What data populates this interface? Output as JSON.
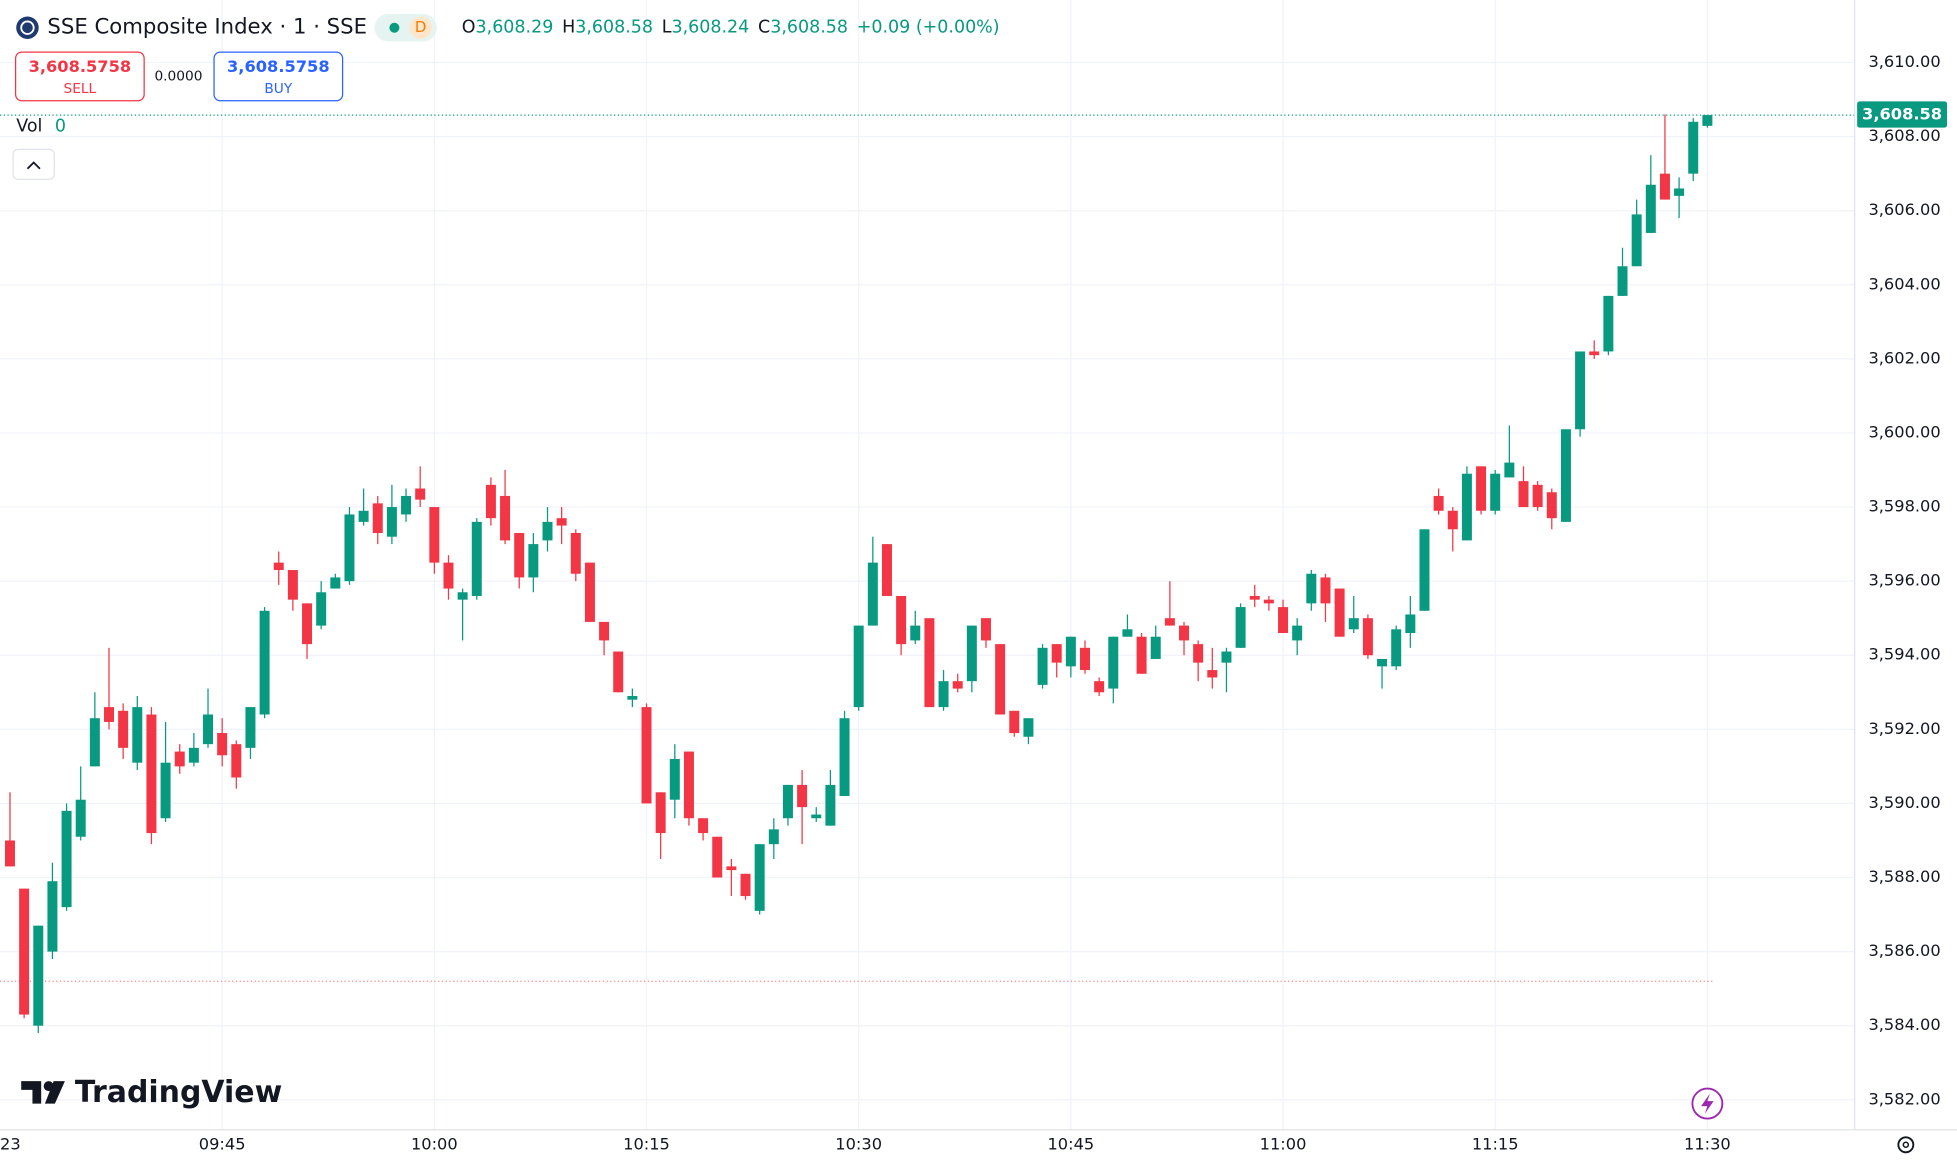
{
  "chart_data": {
    "type": "candlestick",
    "title": "SSE Composite Index · 1 · SSE",
    "interval_badge": "D",
    "ohlc_legend": [
      {
        "key": "O",
        "value": "3,608.29"
      },
      {
        "key": "H",
        "value": "3,608.58"
      },
      {
        "key": "L",
        "value": "3,608.24"
      },
      {
        "key": "C",
        "value": "3,608.58"
      }
    ],
    "change": "+0.09 (+0.00%)",
    "sell": {
      "price": "3,608.5758",
      "label": "SELL"
    },
    "spread": "0.0000",
    "buy": {
      "price": "3,608.5758",
      "label": "BUY"
    },
    "volume": {
      "label": "Vol",
      "value": "0"
    },
    "logo": "TradingView",
    "up_color": "#089981",
    "down_color": "#f23645",
    "x": [
      "09:30",
      "09:31",
      "09:32",
      "09:33",
      "09:34",
      "09:35",
      "09:36",
      "09:37",
      "09:38",
      "09:39",
      "09:40",
      "09:41",
      "09:42",
      "09:43",
      "09:44",
      "09:45",
      "09:46",
      "09:47",
      "09:48",
      "09:49",
      "09:50",
      "09:51",
      "09:52",
      "09:53",
      "09:54",
      "09:55",
      "09:56",
      "09:57",
      "09:58",
      "09:59",
      "10:00",
      "10:01",
      "10:02",
      "10:03",
      "10:04",
      "10:05",
      "10:06",
      "10:07",
      "10:08",
      "10:09",
      "10:10",
      "10:11",
      "10:12",
      "10:13",
      "10:14",
      "10:15",
      "10:16",
      "10:17",
      "10:18",
      "10:19",
      "10:20",
      "10:21",
      "10:22",
      "10:23",
      "10:24",
      "10:25",
      "10:26",
      "10:27",
      "10:28",
      "10:29",
      "10:30",
      "10:31",
      "10:32",
      "10:33",
      "10:34",
      "10:35",
      "10:36",
      "10:37",
      "10:38",
      "10:39",
      "10:40",
      "10:41",
      "10:42",
      "10:43",
      "10:44",
      "10:45",
      "10:46",
      "10:47",
      "10:48",
      "10:49",
      "10:50",
      "10:51",
      "10:52",
      "10:53",
      "10:54",
      "10:55",
      "10:56",
      "10:57",
      "10:58",
      "10:59",
      "11:00",
      "11:01",
      "11:02",
      "11:03",
      "11:04",
      "11:05",
      "11:06",
      "11:07",
      "11:08",
      "11:09",
      "11:10",
      "11:11",
      "11:12",
      "11:13",
      "11:14",
      "11:15",
      "11:16",
      "11:17",
      "11:18",
      "11:19",
      "11:20",
      "11:21",
      "11:22",
      "11:23",
      "11:24",
      "11:25",
      "11:26",
      "11:27",
      "11:28",
      "11:29",
      "11:30"
    ],
    "open": [
      3589.0,
      3587.7,
      3584.0,
      3586.0,
      3587.2,
      3589.1,
      3591.0,
      3592.6,
      3592.5,
      3591.1,
      3592.4,
      3589.6,
      3591.4,
      3591.1,
      3591.6,
      3591.9,
      3591.6,
      3591.5,
      3592.4,
      3596.5,
      3596.3,
      3595.4,
      3594.8,
      3595.8,
      3596.0,
      3597.6,
      3598.1,
      3597.2,
      3597.8,
      3598.5,
      3598.0,
      3596.5,
      3595.5,
      3595.6,
      3598.6,
      3598.3,
      3597.3,
      3596.1,
      3597.1,
      3597.7,
      3597.3,
      3596.5,
      3594.9,
      3594.1,
      3592.8,
      3592.6,
      3590.3,
      3590.1,
      3591.4,
      3589.6,
      3589.1,
      3588.3,
      3588.1,
      3587.1,
      3588.9,
      3589.6,
      3590.5,
      3589.6,
      3589.4,
      3590.2,
      3592.6,
      3594.8,
      3597.0,
      3595.6,
      3594.4,
      3595.0,
      3592.6,
      3593.3,
      3593.3,
      3595.0,
      3594.3,
      3592.5,
      3591.8,
      3593.2,
      3594.3,
      3593.7,
      3594.2,
      3593.3,
      3593.1,
      3594.5,
      3594.5,
      3593.9,
      3595.0,
      3594.8,
      3594.3,
      3593.6,
      3593.8,
      3594.2,
      3595.6,
      3595.5,
      3595.3,
      3594.4,
      3595.4,
      3596.1,
      3595.8,
      3594.7,
      3595.0,
      3593.7,
      3593.7,
      3594.6,
      3595.2,
      3598.3,
      3597.9,
      3597.1,
      3599.1,
      3597.9,
      3598.8,
      3598.7,
      3598.6,
      3598.4,
      3597.6,
      3600.1,
      3602.2,
      3602.2,
      3603.7,
      3604.5,
      3605.4,
      3607.0,
      3606.4,
      3607.0,
      3608.29
    ],
    "high": [
      3590.3,
      3587.7,
      3586.7,
      3588.4,
      3590.0,
      3591.0,
      3593.0,
      3594.2,
      3592.7,
      3592.9,
      3592.6,
      3592.2,
      3591.6,
      3591.9,
      3593.1,
      3592.3,
      3591.7,
      3592.6,
      3595.3,
      3596.8,
      3596.3,
      3595.4,
      3596.0,
      3596.2,
      3598.0,
      3598.5,
      3598.3,
      3598.6,
      3598.5,
      3599.1,
      3598.0,
      3596.7,
      3595.8,
      3597.7,
      3598.8,
      3599.0,
      3597.3,
      3597.3,
      3598.0,
      3598.0,
      3597.4,
      3596.5,
      3594.9,
      3594.1,
      3593.1,
      3592.7,
      3590.3,
      3591.6,
      3591.4,
      3589.6,
      3589.1,
      3588.5,
      3588.1,
      3588.9,
      3589.6,
      3590.5,
      3590.9,
      3589.9,
      3590.9,
      3592.5,
      3594.8,
      3597.2,
      3597.0,
      3595.6,
      3595.2,
      3595.0,
      3593.6,
      3593.5,
      3594.8,
      3595.0,
      3594.3,
      3592.5,
      3592.3,
      3594.3,
      3594.3,
      3594.5,
      3594.4,
      3593.4,
      3594.5,
      3595.1,
      3594.6,
      3594.8,
      3596.0,
      3594.9,
      3594.4,
      3594.2,
      3594.2,
      3595.4,
      3595.9,
      3595.6,
      3595.5,
      3595.0,
      3596.3,
      3596.2,
      3595.8,
      3595.6,
      3595.1,
      3593.9,
      3594.8,
      3595.6,
      3597.4,
      3598.5,
      3598.0,
      3599.1,
      3599.1,
      3599.0,
      3600.2,
      3599.1,
      3598.7,
      3598.5,
      3600.1,
      3602.2,
      3602.5,
      3603.7,
      3605.0,
      3606.3,
      3607.5,
      3608.6,
      3606.9,
      3608.5,
      3608.58
    ],
    "low": [
      3588.3,
      3584.2,
      3583.8,
      3585.8,
      3587.1,
      3589.0,
      3591.0,
      3592.0,
      3591.2,
      3590.9,
      3588.9,
      3589.5,
      3590.8,
      3591.0,
      3591.5,
      3591.0,
      3590.4,
      3591.2,
      3592.3,
      3595.9,
      3595.2,
      3593.9,
      3594.7,
      3595.8,
      3595.9,
      3597.5,
      3597.0,
      3597.0,
      3597.6,
      3598.0,
      3596.2,
      3595.5,
      3594.4,
      3595.5,
      3597.5,
      3597.0,
      3595.8,
      3595.7,
      3596.8,
      3597.0,
      3596.0,
      3594.9,
      3594.0,
      3593.0,
      3592.6,
      3590.0,
      3588.5,
      3589.6,
      3589.4,
      3589.0,
      3588.0,
      3587.5,
      3587.4,
      3587.0,
      3588.5,
      3589.4,
      3588.9,
      3589.5,
      3589.4,
      3590.2,
      3592.5,
      3594.8,
      3595.6,
      3594.0,
      3594.3,
      3592.6,
      3592.5,
      3593.0,
      3593.0,
      3594.2,
      3592.4,
      3591.8,
      3591.6,
      3593.1,
      3593.4,
      3593.4,
      3593.5,
      3592.9,
      3592.7,
      3594.5,
      3593.5,
      3593.9,
      3594.8,
      3594.0,
      3593.3,
      3593.1,
      3593.0,
      3594.2,
      3595.3,
      3595.2,
      3594.6,
      3594.0,
      3595.2,
      3594.9,
      3594.5,
      3594.6,
      3593.9,
      3593.1,
      3593.6,
      3594.2,
      3595.2,
      3597.8,
      3596.8,
      3597.1,
      3597.8,
      3597.8,
      3598.8,
      3598.0,
      3597.9,
      3597.4,
      3597.6,
      3599.9,
      3602.0,
      3602.1,
      3603.7,
      3604.5,
      3605.4,
      3606.3,
      3605.8,
      3606.8,
      3608.24
    ],
    "close": [
      3588.3,
      3584.3,
      3586.7,
      3587.9,
      3589.8,
      3590.1,
      3592.3,
      3592.2,
      3591.5,
      3592.6,
      3589.2,
      3591.1,
      3591.0,
      3591.5,
      3592.4,
      3591.3,
      3590.7,
      3592.6,
      3595.2,
      3596.3,
      3595.5,
      3594.3,
      3595.7,
      3596.1,
      3597.8,
      3597.9,
      3597.3,
      3598.0,
      3598.3,
      3598.2,
      3596.5,
      3595.8,
      3595.7,
      3597.6,
      3597.7,
      3597.1,
      3596.1,
      3597.0,
      3597.6,
      3597.5,
      3596.2,
      3594.9,
      3594.4,
      3593.0,
      3592.9,
      3590.0,
      3589.2,
      3591.2,
      3589.6,
      3589.2,
      3588.0,
      3588.2,
      3587.5,
      3588.9,
      3589.3,
      3590.5,
      3589.9,
      3589.7,
      3590.5,
      3592.3,
      3594.8,
      3596.5,
      3595.6,
      3594.3,
      3594.8,
      3592.6,
      3593.3,
      3593.1,
      3594.8,
      3594.4,
      3592.4,
      3591.9,
      3592.3,
      3594.2,
      3593.8,
      3594.5,
      3593.6,
      3593.0,
      3594.5,
      3594.7,
      3593.5,
      3594.5,
      3594.8,
      3594.4,
      3593.8,
      3593.4,
      3594.1,
      3595.3,
      3595.5,
      3595.4,
      3594.6,
      3594.8,
      3596.2,
      3595.4,
      3594.5,
      3595.0,
      3594.0,
      3593.9,
      3594.7,
      3595.1,
      3597.4,
      3597.9,
      3597.4,
      3598.9,
      3597.9,
      3598.9,
      3599.2,
      3598.0,
      3598.0,
      3597.7,
      3600.1,
      3602.2,
      3602.1,
      3603.7,
      3604.5,
      3605.9,
      3606.7,
      3606.3,
      3606.6,
      3608.4,
      3608.58
    ],
    "xticks": [
      "09:45",
      "10:00",
      "10:15",
      "10:30",
      "10:45",
      "11:00",
      "11:15",
      "11:30"
    ],
    "x_edge_label": "23",
    "ylim": [
      3581.19,
      3611.68
    ],
    "yticks": [
      {
        "value": 3582,
        "label": "3,582.00"
      },
      {
        "value": 3584,
        "label": "3,584.00"
      },
      {
        "value": 3586,
        "label": "3,586.00"
      },
      {
        "value": 3588,
        "label": "3,588.00"
      },
      {
        "value": 3590,
        "label": "3,590.00"
      },
      {
        "value": 3592,
        "label": "3,592.00"
      },
      {
        "value": 3594,
        "label": "3,594.00"
      },
      {
        "value": 3596,
        "label": "3,596.00"
      },
      {
        "value": 3598,
        "label": "3,598.00"
      },
      {
        "value": 3600,
        "label": "3,600.00"
      },
      {
        "value": 3602,
        "label": "3,602.00"
      },
      {
        "value": 3604,
        "label": "3,604.00"
      },
      {
        "value": 3606,
        "label": "3,606.00"
      },
      {
        "value": 3608,
        "label": "3,608.00"
      },
      {
        "value": 3610,
        "label": "3,610.00"
      }
    ],
    "last_price": {
      "value": 3608.58,
      "label": "3,608.58"
    },
    "reference_line": 3585.2,
    "grid": true
  }
}
